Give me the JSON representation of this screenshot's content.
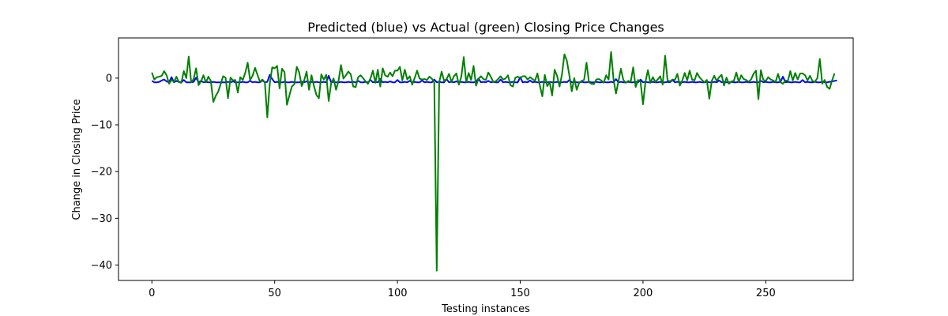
{
  "chart_data": {
    "type": "line",
    "title": "Predicted (blue) vs Actual (green) Closing Price Changes",
    "xlabel": "Testing instances",
    "ylabel": "Change in Closing Price",
    "xlim": [
      -13.6,
      285.6
    ],
    "ylim": [
      -43.3,
      8.6
    ],
    "xticks": [
      0,
      50,
      100,
      150,
      200,
      250
    ],
    "yticks": [
      0,
      -10,
      -20,
      -30,
      -40
    ],
    "grid": false,
    "legend": "none",
    "series": [
      {
        "color": "#0000ff",
        "values": [
          -0.6,
          -0.9,
          -0.9,
          -0.8,
          -0.5,
          -0.3,
          -0.7,
          -0.9,
          0.2,
          -0.9,
          -0.6,
          -0.8,
          -0.9,
          -0.4,
          -0.9,
          -0.9,
          -0.9,
          -0.8,
          0.1,
          -0.9,
          -0.6,
          -0.9,
          -0.8,
          -0.9,
          -0.9,
          -0.8,
          -0.9,
          -0.9,
          -0.9,
          -0.9,
          -0.9,
          -0.8,
          -0.9,
          -0.7,
          -0.9,
          -0.9,
          -0.9,
          -0.8,
          -0.9,
          -0.9,
          -0.6,
          -0.9,
          -0.8,
          -0.9,
          -0.9,
          -0.5,
          -0.9,
          -0.8,
          0.7,
          -0.2,
          -0.9,
          -0.8,
          -0.9,
          -0.9,
          -0.8,
          -0.9,
          -0.9,
          -0.8,
          -0.9,
          -0.9,
          -0.9,
          -0.8,
          -0.9,
          -0.7,
          -0.9,
          -0.8,
          -0.9,
          -0.8,
          -0.9,
          -0.9,
          -0.8,
          -0.9,
          0.5,
          -0.9,
          -0.8,
          -0.9,
          -0.9,
          -0.8,
          -0.9,
          -0.9,
          -0.8,
          -0.9,
          -0.8,
          -0.9,
          -0.6,
          -0.9,
          -0.9,
          -0.8,
          -0.9,
          -0.4,
          -0.9,
          -0.8,
          -0.9,
          -0.2,
          -0.9,
          -0.8,
          -0.9,
          -0.7,
          -0.9,
          -0.9,
          -0.4,
          -0.9,
          -0.9,
          -0.8,
          -0.9,
          -0.6,
          -0.9,
          -0.8,
          -0.9,
          -0.9,
          -0.5,
          -0.9,
          -0.8,
          -0.9,
          -0.9,
          -0.3,
          -0.9,
          -0.8,
          -0.9,
          -0.9,
          -0.2,
          -0.9,
          -0.8,
          -0.9,
          -0.7,
          -0.9,
          -0.8,
          -0.9,
          -0.9,
          -0.8,
          -0.9,
          -0.9,
          -0.8,
          -0.1,
          -0.9,
          -0.8,
          -0.9,
          -0.6,
          -0.9,
          -0.8,
          -0.9,
          -0.9,
          -0.3,
          -0.9,
          -0.8,
          -0.9,
          -0.9,
          -0.8,
          -0.9,
          -0.9,
          0.2,
          -0.9,
          -0.8,
          -0.9,
          -0.5,
          -0.9,
          -0.8,
          -0.9,
          -0.9,
          -0.8,
          -0.9,
          -0.9,
          -0.8,
          -0.9,
          -0.9,
          -0.8,
          -0.9,
          -0.9,
          -0.8,
          -0.9,
          -0.4,
          -0.9,
          -0.8,
          -0.9,
          -0.9,
          -0.8,
          -0.9,
          -0.9,
          -0.8,
          -0.9,
          -0.9,
          -0.8,
          -0.9,
          -0.9,
          -0.8,
          -0.9,
          -0.9,
          -0.8,
          -0.9,
          -0.2,
          -0.9,
          -0.8,
          -0.9,
          -0.9,
          -0.8,
          -0.9,
          -0.9,
          -0.8,
          -0.9,
          -0.3,
          -0.9,
          -0.8,
          -0.9,
          -0.9,
          -0.8,
          -0.9,
          -0.9,
          -0.8,
          -0.9,
          -0.9,
          -0.8,
          -0.9,
          -0.4,
          -0.9,
          -0.8,
          -0.9,
          -0.9,
          -0.8,
          -0.9,
          -0.9,
          -0.8,
          -0.9,
          -0.9,
          -0.8,
          -0.9,
          -0.9,
          -0.8,
          -0.9,
          -0.9,
          -0.8,
          -0.9,
          -0.5,
          -0.9,
          -0.8,
          -0.9,
          -0.9,
          -0.8,
          -0.9,
          -0.9,
          -0.8,
          -0.9,
          -0.9,
          -0.8,
          -0.9,
          -0.9,
          -0.8,
          -0.9,
          -0.9,
          -0.6,
          -0.9,
          -0.8,
          -0.9,
          -0.9,
          -0.8,
          -0.9,
          -0.9,
          -0.8,
          0.3,
          -0.9,
          -0.8,
          -0.9,
          -0.9,
          -0.8,
          -0.9,
          -0.9,
          -0.4,
          -0.9,
          -0.8,
          -0.9,
          -0.9,
          -0.8,
          -0.9,
          -0.9,
          -0.8,
          -0.9,
          -0.9,
          -0.8,
          -0.7,
          -0.6,
          -0.5
        ]
      },
      {
        "color": "#008000",
        "values": [
          1.2,
          -0.3,
          0.2,
          0.3,
          0.5,
          1.5,
          0.6,
          -1.2,
          -0.4,
          -0.8,
          0.3,
          -0.9,
          -1.0,
          1.5,
          0.0,
          4.6,
          -0.9,
          -0.2,
          2.1,
          -1.5,
          -0.7,
          0.6,
          -0.9,
          0.3,
          -0.6,
          -5.1,
          -3.8,
          -2.9,
          -1.3,
          0.4,
          0.1,
          -4.3,
          0.1,
          -0.5,
          -0.4,
          -3.1,
          0.2,
          -0.4,
          1.1,
          3.3,
          -0.4,
          0.5,
          2.2,
          0.7,
          -0.8,
          -0.3,
          -0.9,
          -8.4,
          -1.2,
          2.3,
          2.1,
          2.6,
          -2.2,
          2.0,
          1.3,
          -5.7,
          -3.7,
          -1.8,
          -1.3,
          2.4,
          1.2,
          -1.7,
          -0.5,
          1.4,
          -2.5,
          0.6,
          -1.7,
          -3.6,
          -4.3,
          0.8,
          -0.3,
          0.7,
          -4.9,
          -1.1,
          -0.1,
          -2.5,
          -0.6,
          2.8,
          -0.1,
          0.6,
          1.4,
          0.8,
          -1.8,
          -1.9,
          0.2,
          0.6,
          0.0,
          -0.7,
          -1.2,
          -0.1,
          1.6,
          -1.0,
          1.8,
          -1.8,
          2.1,
          0.6,
          0.3,
          1.2,
          0.4,
          1.6,
          1.6,
          2.4,
          -0.5,
          1.8,
          -0.3,
          0.4,
          -1.4,
          0.0,
          1.6,
          -0.1,
          -0.3,
          -0.2,
          -0.4,
          0.3,
          -0.1,
          -1.0,
          -41.2,
          -0.9,
          1.4,
          -0.6,
          -0.2,
          0.9,
          -0.8,
          0.4,
          1.0,
          -1.4,
          0.3,
          4.5,
          -0.9,
          1.1,
          -0.4,
          2.6,
          -1.6,
          -0.2,
          0.4,
          -0.2,
          -0.4,
          1.2,
          0.3,
          -0.8,
          -0.7,
          -0.2,
          0.4,
          -0.3,
          -0.1,
          0.6,
          -1.5,
          -1.8,
          0.1,
          0.3,
          0.0,
          0.4,
          0.4,
          -0.3,
          0.2,
          -0.2,
          -0.6,
          1.0,
          -1.6,
          -3.9,
          0.7,
          -1.7,
          -0.9,
          -3.7,
          1.8,
          0.5,
          -1.8,
          0.8,
          5.1,
          3.7,
          0.6,
          -2.8,
          0.0,
          -2.5,
          -1.0,
          -0.6,
          -0.4,
          3.3,
          -0.9,
          -1.2,
          -1.3,
          -0.3,
          -0.2,
          -0.5,
          -1.0,
          0.6,
          -0.3,
          5.6,
          -0.3,
          -3.3,
          -0.7,
          2.0,
          -0.4,
          -1.0,
          -0.6,
          -0.8,
          2.3,
          -1.9,
          -0.4,
          -0.8,
          -5.6,
          -0.8,
          1.7,
          -1.0,
          0.2,
          -0.8,
          -0.3,
          0.4,
          -1.4,
          4.8,
          -0.5,
          -0.7,
          -0.3,
          -0.4,
          0.9,
          -1.6,
          -0.5,
          1.1,
          -0.5,
          1.6,
          -0.3,
          -0.5,
          1.1,
          0.2,
          -0.4,
          -0.9,
          -0.4,
          -4.4,
          -0.6,
          0.5,
          -0.6,
          0.2,
          0.7,
          -1.6,
          0.1,
          -1.2,
          -0.7,
          -0.6,
          1.2,
          -0.8,
          0.6,
          -0.2,
          -0.4,
          -0.8,
          -0.3,
          0.9,
          1.6,
          -4.5,
          1.7,
          -0.4,
          -0.6,
          0.2,
          -0.3,
          -0.5,
          -0.8,
          0.9,
          -0.9,
          -1.2,
          -0.5,
          -0.6,
          1.5,
          -0.5,
          1.1,
          -0.3,
          1.0,
          1.0,
          0.6,
          -0.5,
          0.5,
          -0.6,
          -0.8,
          0.0,
          4.1,
          -1.2,
          -0.4,
          -1.9,
          -2.3,
          -0.5,
          1.0
        ]
      }
    ]
  }
}
